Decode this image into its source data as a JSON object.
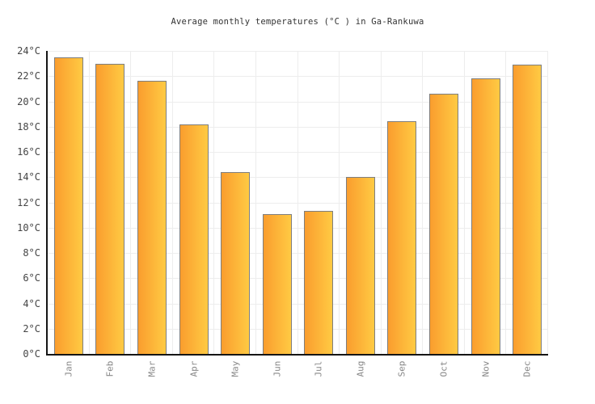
{
  "chart_data": {
    "type": "bar",
    "title": "Average monthly temperatures (°C ) in Ga-Rankuwa",
    "categories": [
      "Jan",
      "Feb",
      "Mar",
      "Apr",
      "May",
      "Jun",
      "Jul",
      "Aug",
      "Sep",
      "Oct",
      "Nov",
      "Dec"
    ],
    "values": [
      23.5,
      23.0,
      21.6,
      18.2,
      14.4,
      11.1,
      11.3,
      14.0,
      18.4,
      20.6,
      21.8,
      22.9
    ],
    "xlabel": "",
    "ylabel": "",
    "ylim": [
      0,
      24
    ],
    "ytick_step": 2,
    "ytick_suffix": "°C",
    "grid": true,
    "legend": "none",
    "colors": {
      "bar_gradient_left": "#fa9d2e",
      "bar_gradient_right": "#ffca43",
      "bar_border": "#7e7e7e",
      "gridline": "#ededed",
      "axis": "#151515",
      "title_text": "#333333",
      "ytick_text": "#454545",
      "xtick_text": "#888888",
      "background": "#ffffff"
    }
  }
}
